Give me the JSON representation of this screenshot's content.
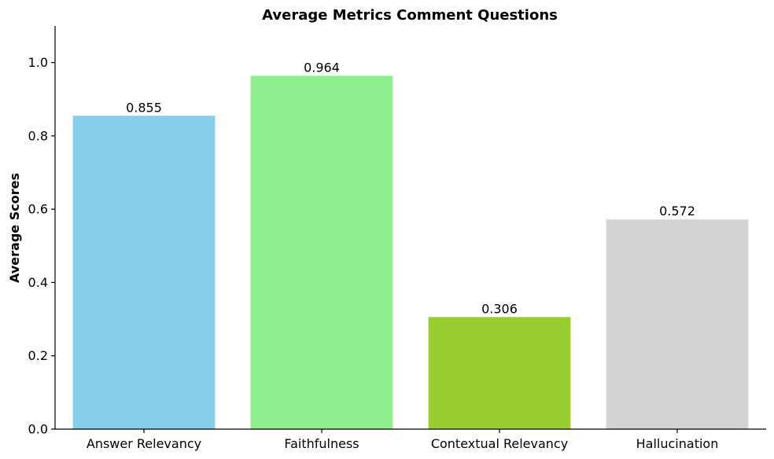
{
  "chart_data": {
    "type": "bar",
    "title": "Average Metrics Comment Questions",
    "xlabel": "",
    "ylabel": "Average Scores",
    "categories": [
      "Answer Relevancy",
      "Faithfulness",
      "Contextual Relevancy",
      "Hallucination"
    ],
    "values": [
      0.855,
      0.964,
      0.306,
      0.572
    ],
    "value_labels": [
      "0.855",
      "0.964",
      "0.306",
      "0.572"
    ],
    "colors": [
      "#87CEEB",
      "#90EE90",
      "#9ACD32",
      "#D3D3D3"
    ],
    "ylim": [
      0,
      1.1
    ],
    "yticks": [
      0.0,
      0.2,
      0.4,
      0.6,
      0.8,
      1.0
    ],
    "ytick_labels": [
      "0.0",
      "0.2",
      "0.4",
      "0.6",
      "0.8",
      "1.0"
    ],
    "grid": false,
    "spines": "left-bottom"
  }
}
